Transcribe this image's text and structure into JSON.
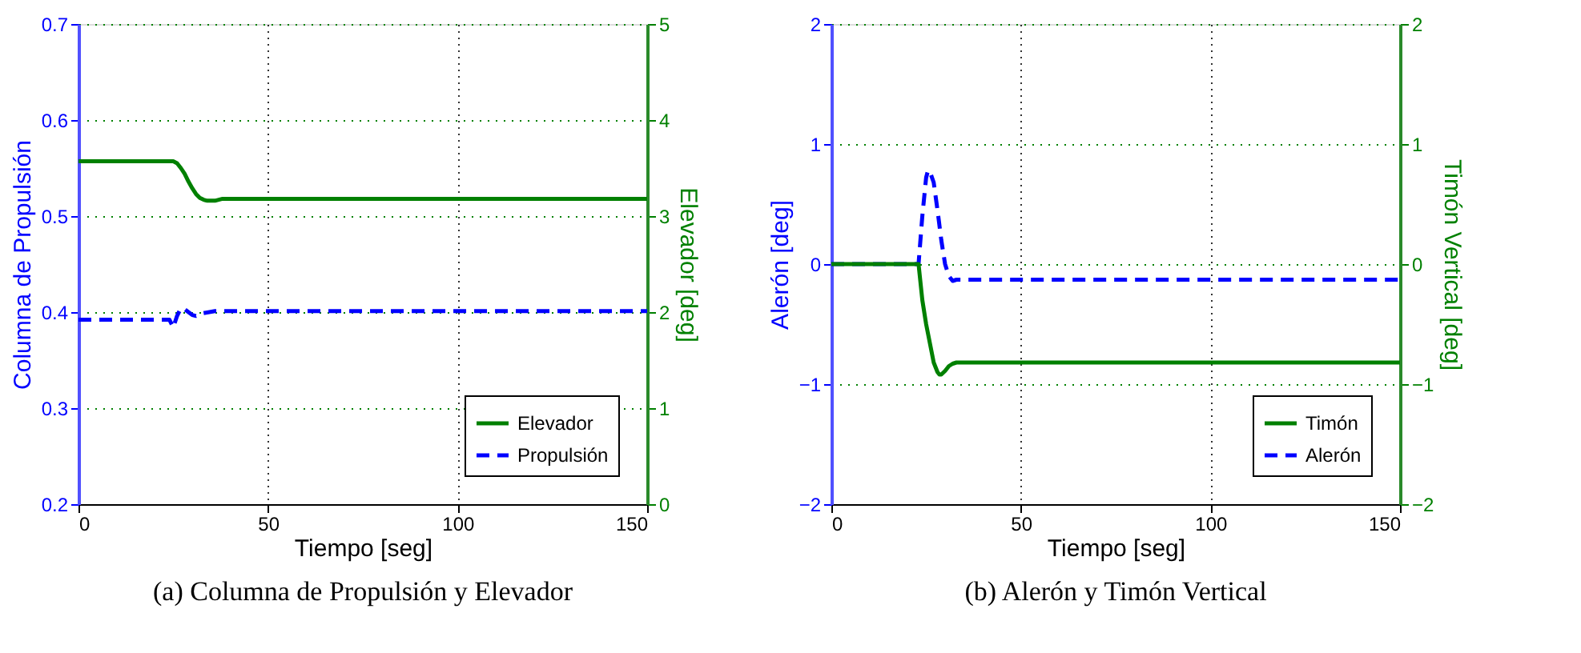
{
  "chart_data": [
    {
      "type": "line",
      "title": "(a) Columna de Propulsión y Elevador",
      "xlabel": "Tiempo [seg]",
      "ylabel": "Columna de Propulsión",
      "y2label": "Elevador [deg]",
      "xlim": [
        0,
        150
      ],
      "xticks": [
        0,
        50,
        100,
        150
      ],
      "ylim": [
        0.2,
        0.7
      ],
      "yticks": [
        0.2,
        0.3,
        0.4,
        0.5,
        0.6,
        0.7
      ],
      "y2lim": [
        0,
        5
      ],
      "y2ticks": [
        0,
        1,
        2,
        3,
        4,
        5
      ],
      "grid": true,
      "legend": "bottom right",
      "series": [
        {
          "name": "Elevador",
          "color": "#008000",
          "axis": "y2",
          "line_style": "solid",
          "x": [
            0,
            24,
            25,
            26,
            27,
            28,
            29,
            30,
            31,
            32,
            33,
            34,
            35,
            36,
            38,
            40,
            150
          ],
          "values": [
            3.57,
            3.57,
            3.57,
            3.55,
            3.5,
            3.44,
            3.36,
            3.29,
            3.23,
            3.19,
            3.17,
            3.16,
            3.16,
            3.16,
            3.18,
            3.18,
            3.18
          ]
        },
        {
          "name": "Propulsión",
          "color": "#0000ff",
          "axis": "y",
          "line_style": "dashed",
          "x": [
            0,
            24,
            24.5,
            25,
            26,
            27,
            28,
            29,
            30,
            31,
            33,
            36,
            40,
            150
          ],
          "values": [
            0.392,
            0.392,
            0.388,
            0.384,
            0.396,
            0.404,
            0.403,
            0.4,
            0.397,
            0.396,
            0.399,
            0.401,
            0.401,
            0.401
          ]
        }
      ]
    },
    {
      "type": "line",
      "title": "(b) Alerón y Timón Vertical",
      "xlabel": "Tiempo [seg]",
      "ylabel": "Alerón [deg]",
      "y2label": "Timón Vertical [deg]",
      "xlim": [
        0,
        150
      ],
      "xticks": [
        0,
        50,
        100,
        150
      ],
      "ylim": [
        -2,
        2
      ],
      "yticks": [
        -2,
        -1,
        0,
        1,
        2
      ],
      "y2lim": [
        -2,
        2
      ],
      "y2ticks": [
        -2,
        -1,
        0,
        1,
        2
      ],
      "grid": true,
      "legend": "bottom right",
      "series": [
        {
          "name": "Timón",
          "color": "#008000",
          "axis": "y2",
          "line_style": "solid",
          "x": [
            0,
            23,
            24,
            25,
            25.5,
            26,
            27,
            28,
            28.5,
            29,
            30,
            31,
            32,
            33,
            35,
            150
          ],
          "values": [
            0,
            0,
            -0.3,
            -0.5,
            -0.58,
            -0.66,
            -0.82,
            -0.9,
            -0.92,
            -0.92,
            -0.89,
            -0.85,
            -0.83,
            -0.82,
            -0.82,
            -0.82
          ]
        },
        {
          "name": "Alerón",
          "color": "#0000ff",
          "axis": "y",
          "line_style": "dashed",
          "x": [
            0,
            23,
            24,
            25,
            25.5,
            26,
            27,
            28,
            29,
            30,
            31,
            32,
            33,
            35,
            150
          ],
          "values": [
            0,
            0,
            0.4,
            0.72,
            0.78,
            0.77,
            0.68,
            0.45,
            0.2,
            0,
            -0.1,
            -0.14,
            -0.13,
            -0.13,
            -0.13
          ]
        }
      ]
    }
  ]
}
